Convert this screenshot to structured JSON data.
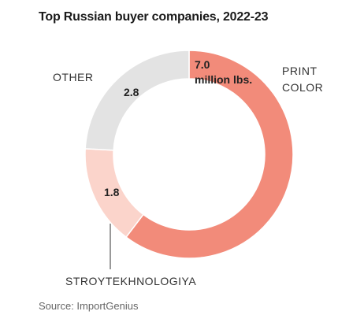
{
  "chart_data": {
    "type": "pie",
    "title": "Top Russian buyer companies, 2022-23",
    "unit_note": "million lbs.",
    "categories": [
      "PRINT COLOR",
      "STROYTEKHNOLOGIYA",
      "OTHER"
    ],
    "values": [
      7.0,
      1.8,
      2.8
    ],
    "value_labels": [
      "7.0",
      "1.8",
      "2.8"
    ],
    "colors": [
      "#f28b7a",
      "#fbd4cb",
      "#e3e3e3"
    ],
    "category_lines": [
      [
        "PRINT",
        "COLOR"
      ],
      [
        "STROYTEKHNOLOGIYA"
      ],
      [
        "OTHER"
      ]
    ],
    "source": "Source: ImportGenius"
  }
}
